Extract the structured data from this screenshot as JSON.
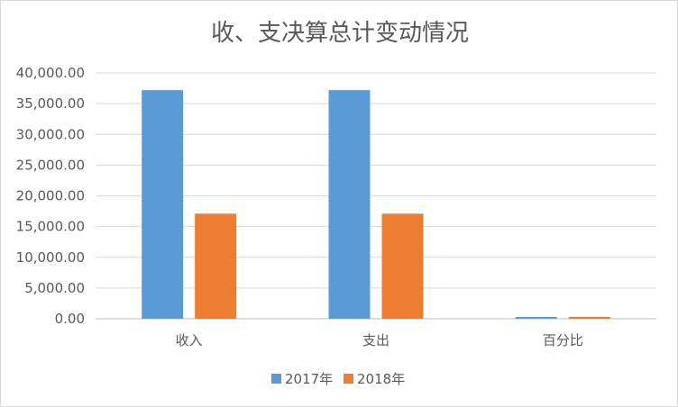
{
  "chart_data": {
    "type": "bar",
    "title": "收、支决算总计变动情况",
    "categories": [
      "收入",
      "支出",
      "百分比"
    ],
    "series": [
      {
        "name": "2017年",
        "values": [
          37200,
          37200,
          300
        ],
        "color": "#5b9bd5"
      },
      {
        "name": "2018年",
        "values": [
          17100,
          17100,
          300
        ],
        "color": "#ed7d31"
      }
    ],
    "ylim": [
      0,
      40000
    ],
    "yticks": [
      0,
      5000,
      10000,
      15000,
      20000,
      25000,
      30000,
      35000,
      40000
    ],
    "ytick_labels": [
      "0.00",
      "5,000.00",
      "10,000.00",
      "15,000.00",
      "20,000.00",
      "25,000.00",
      "30,000.00",
      "35,000.00",
      "40,000.00"
    ],
    "grid": true,
    "legend": "bottom"
  }
}
